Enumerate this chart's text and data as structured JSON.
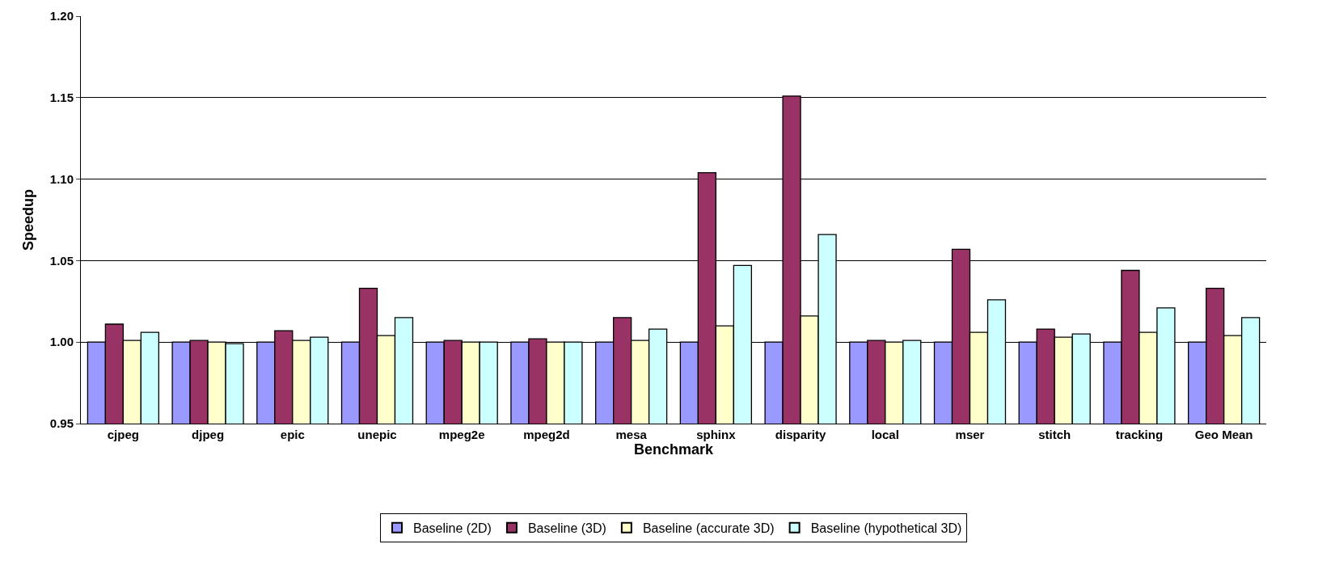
{
  "chart_data": {
    "type": "bar",
    "xlabel": "Benchmark",
    "ylabel": "Speedup",
    "categories": [
      "cjpeg",
      "djpeg",
      "epic",
      "unepic",
      "mpeg2e",
      "mpeg2d",
      "mesa",
      "sphinx",
      "disparity",
      "local",
      "mser",
      "stitch",
      "tracking",
      "Geo Mean"
    ],
    "series": [
      {
        "name": "Baseline (2D)",
        "color": "#9999ff",
        "values": [
          1,
          1,
          1,
          1,
          1,
          1,
          1,
          1,
          1,
          1,
          1,
          1,
          1,
          1
        ]
      },
      {
        "name": "Baseline (3D)",
        "color": "#993366",
        "values": [
          1.011,
          1.001,
          1.007,
          1.033,
          1.001,
          1.002,
          1.015,
          1.104,
          1.151,
          1.001,
          1.057,
          1.008,
          1.044,
          1.033
        ]
      },
      {
        "name": "Baseline (accurate 3D)",
        "color": "#ffffcc",
        "values": [
          1.001,
          1.0,
          1.001,
          1.004,
          1.0,
          1.0,
          1.001,
          1.01,
          1.016,
          1.0,
          1.006,
          1.003,
          1.006,
          1.004
        ]
      },
      {
        "name": "Baseline (hypothetical 3D)",
        "color": "#ccffff",
        "values": [
          1.006,
          0.999,
          1.003,
          1.015,
          1.0,
          1.0,
          1.008,
          1.047,
          1.066,
          1.001,
          1.026,
          1.005,
          1.021,
          1.015
        ]
      }
    ],
    "ylim": [
      0.95,
      1.2
    ],
    "yticks": [
      {
        "value": 0.95,
        "label": "0.95"
      },
      {
        "value": 1.0,
        "label": "1.00"
      },
      {
        "value": 1.05,
        "label": "1.05"
      },
      {
        "value": 1.1,
        "label": "1.10"
      },
      {
        "value": 1.15,
        "label": "1.15"
      },
      {
        "value": 1.2,
        "label": "1.20"
      }
    ],
    "grid": "y",
    "legend": "bottom"
  }
}
